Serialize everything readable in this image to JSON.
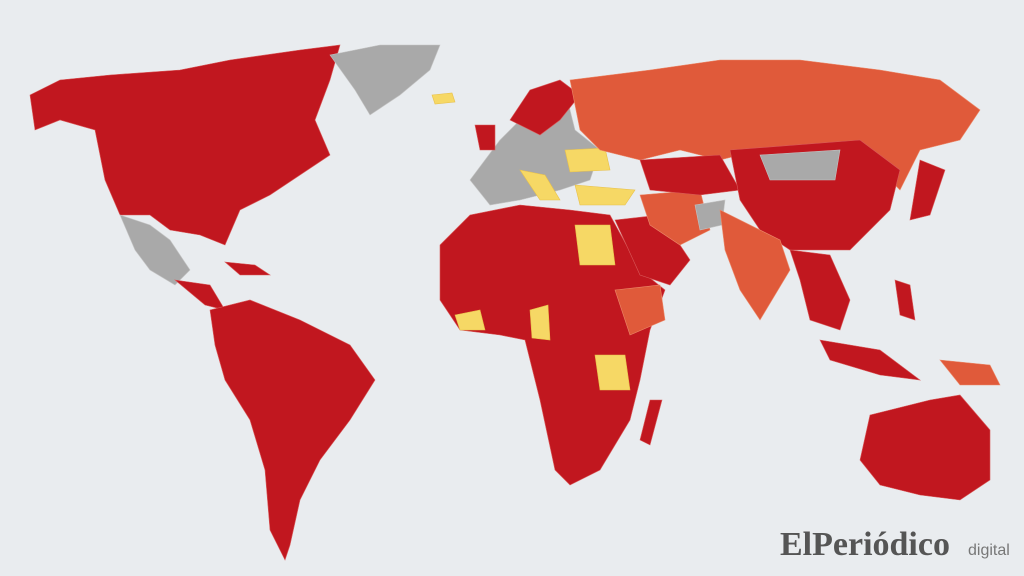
{
  "watermark": {
    "brand": "ElPeriódico",
    "suffix": "digital"
  }
}
